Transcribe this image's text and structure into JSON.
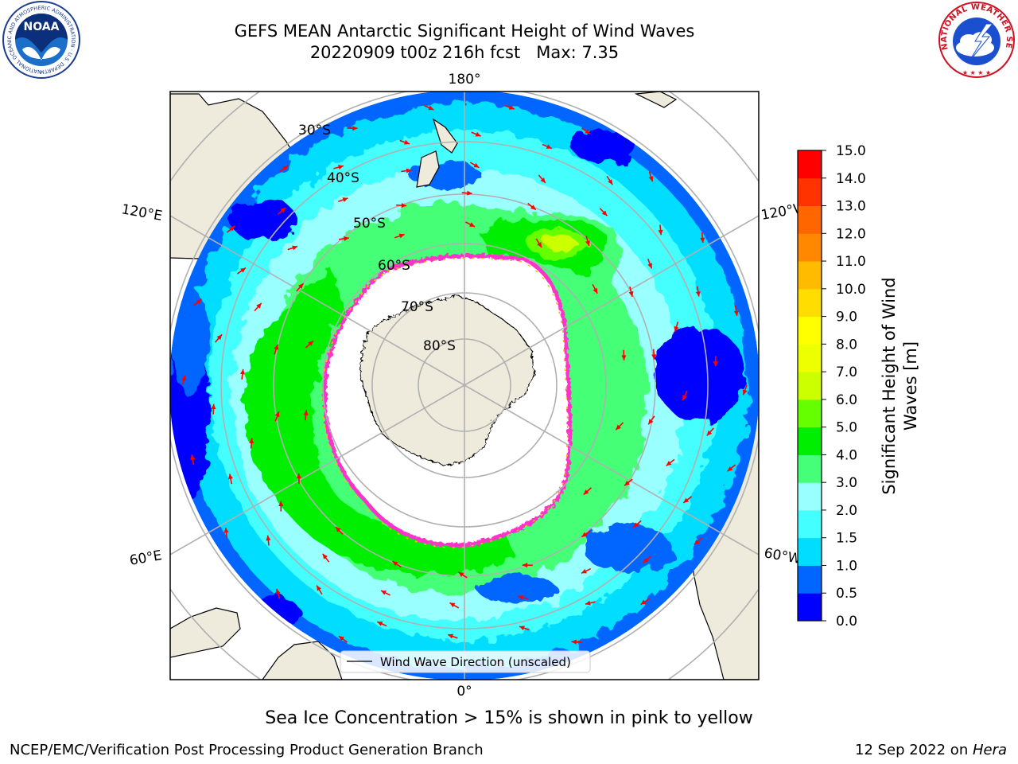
{
  "title": {
    "line1": "GEFS MEAN Antarctic Significant Height of Wind Waves",
    "line2": "20220909 t00z 216h fcst   Max: 7.35"
  },
  "logos": {
    "noaa_text": "NOAA",
    "noaa_ring": "NATIONAL OCEANIC AND ATMOSPHERIC ADMINISTRATION · U.S. DEPARTMENT OF COMMERCE",
    "nws_ring": "NATIONAL WEATHER SERVICE"
  },
  "map": {
    "projection": "south-polar-stereographic",
    "meridian_labels": {
      "top": "180°",
      "bottom": "0°",
      "left_upper": "120°E",
      "left_lower": "60°E",
      "right_upper": "120°W",
      "right_lower": "60°W"
    },
    "parallel_labels": [
      "30°S",
      "40°S",
      "50°S",
      "60°S",
      "70°S",
      "80°S"
    ],
    "legend_label": "Wind Wave Direction (unscaled)",
    "colors": {
      "land": "#efebdc",
      "ice_edge": "#ff33cc",
      "arrow": "#ff0000",
      "grid": "#b0b0b0"
    }
  },
  "colorbar": {
    "label_line1": "Significant Height of Wind",
    "label_line2": "Waves [m]",
    "ticks": [
      "0.0",
      "0.5",
      "1.0",
      "1.5",
      "2.0",
      "3.0",
      "4.0",
      "5.0",
      "6.0",
      "7.0",
      "8.0",
      "9.0",
      "10.0",
      "11.0",
      "12.0",
      "13.0",
      "14.0",
      "15.0"
    ],
    "colors": [
      "#0000ff",
      "#0066ff",
      "#00ddff",
      "#44ffff",
      "#99ffff",
      "#44ff77",
      "#00ee00",
      "#66ff00",
      "#ccff00",
      "#eeff00",
      "#ffff00",
      "#ffdd00",
      "#ffbb00",
      "#ff8800",
      "#ff6600",
      "#ff3300",
      "#ff0000"
    ]
  },
  "footnote": "Sea Ice Concentration > 15% is shown in pink to yellow",
  "credit_left": "NCEP/EMC/Verification Post Processing Product Generation Branch",
  "credit_right_date": "12 Sep 2022 on ",
  "credit_right_host": "Hera"
}
